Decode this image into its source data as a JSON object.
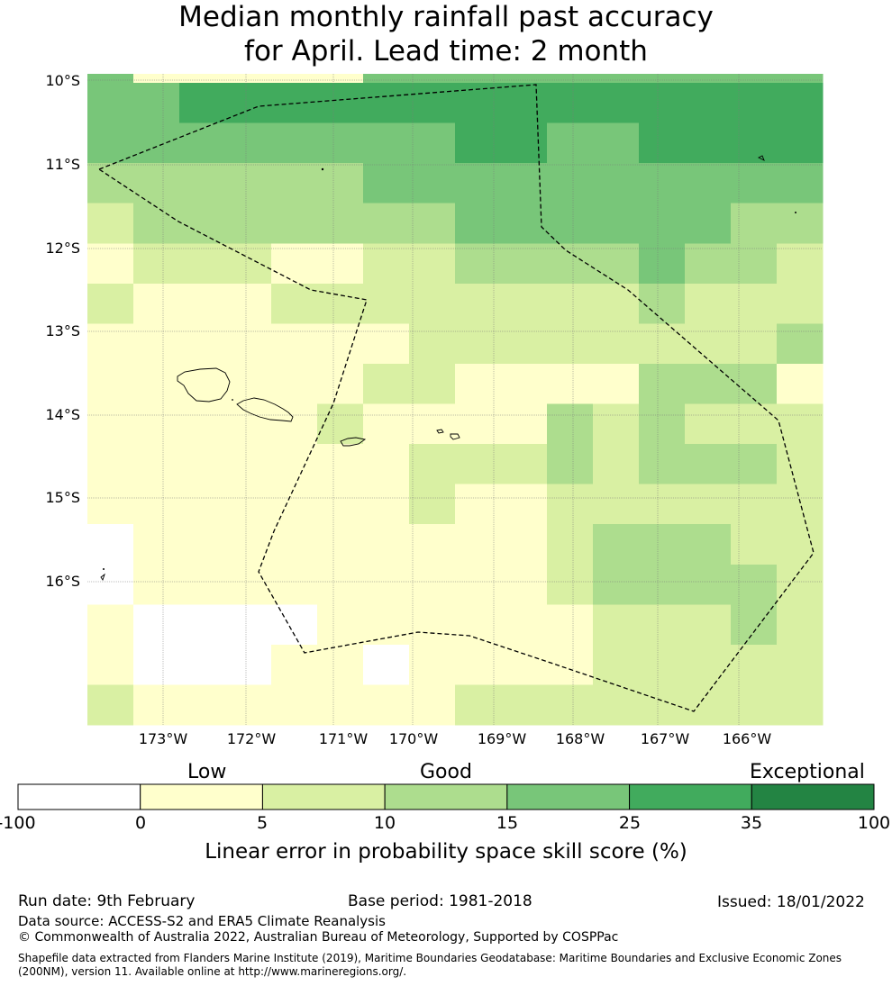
{
  "title_line1": "Median monthly rainfall past accuracy",
  "title_line2": "for April. Lead time: 2 month",
  "lat_labels": [
    "10°S",
    "11°S",
    "12°S",
    "13°S",
    "14°S",
    "15°S",
    "16°S"
  ],
  "lon_labels": [
    "173°W",
    "172°W",
    "171°W",
    "170°W",
    "169°W",
    "168°W",
    "167°W",
    "166°W"
  ],
  "categories": {
    "low": "Low",
    "good": "Good",
    "exceptional": "Exceptional"
  },
  "colorbar": {
    "ticks": [
      "-100",
      "0",
      "5",
      "10",
      "15",
      "25",
      "35",
      "100"
    ],
    "colors": [
      "#ffffff",
      "#ffffcc",
      "#d9f0a3",
      "#addd8e",
      "#78c679",
      "#41ab5d",
      "#238443"
    ],
    "label": "Linear error in probability space skill score (%)"
  },
  "skill_grid": {
    "rows": [
      [
        3,
        3,
        4,
        4,
        4,
        4,
        4,
        4,
        4,
        4,
        4,
        4,
        4,
        4,
        4,
        4
      ],
      [
        3,
        3,
        3,
        3,
        3,
        3,
        3,
        3,
        4,
        4,
        3,
        3,
        4,
        4,
        4,
        4
      ],
      [
        2,
        2,
        2,
        2,
        2,
        2,
        3,
        3,
        3,
        3,
        3,
        3,
        3,
        3,
        3,
        3
      ],
      [
        1,
        2,
        2,
        2,
        2,
        2,
        2,
        2,
        3,
        3,
        3,
        3,
        3,
        3,
        2,
        2
      ],
      [
        0,
        1,
        1,
        1,
        0,
        0,
        1,
        1,
        2,
        2,
        2,
        2,
        3,
        2,
        2,
        1
      ],
      [
        1,
        0,
        0,
        0,
        1,
        1,
        1,
        1,
        1,
        1,
        1,
        1,
        2,
        1,
        1,
        1
      ],
      [
        0,
        0,
        0,
        0,
        0,
        0,
        0,
        1,
        1,
        1,
        1,
        1,
        1,
        1,
        1,
        2
      ],
      [
        0,
        0,
        0,
        0,
        0,
        0,
        1,
        1,
        0,
        0,
        0,
        0,
        2,
        2,
        2,
        0
      ],
      [
        0,
        0,
        0,
        0,
        0,
        1,
        0,
        0,
        0,
        0,
        2,
        1,
        2,
        1,
        1,
        1
      ],
      [
        0,
        0,
        0,
        0,
        0,
        0,
        0,
        1,
        1,
        1,
        2,
        1,
        2,
        2,
        2,
        1
      ],
      [
        0,
        0,
        0,
        0,
        0,
        0,
        0,
        1,
        0,
        0,
        1,
        1,
        1,
        1,
        1,
        1
      ],
      [
        -1,
        0,
        0,
        0,
        0,
        0,
        0,
        0,
        0,
        0,
        1,
        2,
        2,
        2,
        1,
        1
      ],
      [
        -1,
        0,
        0,
        0,
        0,
        0,
        0,
        0,
        0,
        0,
        1,
        2,
        2,
        2,
        2,
        1
      ],
      [
        0,
        -1,
        -1,
        -1,
        -1,
        0,
        0,
        0,
        0,
        0,
        0,
        1,
        1,
        1,
        2,
        1
      ],
      [
        0,
        -1,
        -1,
        -1,
        0,
        0,
        -1,
        0,
        0,
        0,
        0,
        1,
        1,
        1,
        1,
        1
      ],
      [
        1,
        0,
        0,
        0,
        0,
        0,
        0,
        0,
        1,
        1,
        1,
        1,
        1,
        1,
        1,
        1
      ]
    ],
    "top_strip": [
      3,
      0,
      0,
      0,
      0,
      0,
      3,
      3,
      3,
      3,
      3,
      3,
      3,
      3,
      3,
      3
    ]
  },
  "footer": {
    "run_date": "Run date: 9th February",
    "base_period": "Base period: 1981-2018",
    "issued": "Issued: 18/01/2022",
    "data_source": "Data source: ACCESS-S2 and ERA5 Climate Reanalysis",
    "copyright": "© Commonwealth of Australia 2022, Australian Bureau of Meteorology, Supported by COSPPac",
    "shapefile": "Shapefile data extracted from Flanders Marine Institute (2019), Maritime Boundaries Geodatabase: Maritime Boundaries and Exclusive Economic Zones (200NM), version 11. Available online at http://www.marineregions.org/."
  }
}
